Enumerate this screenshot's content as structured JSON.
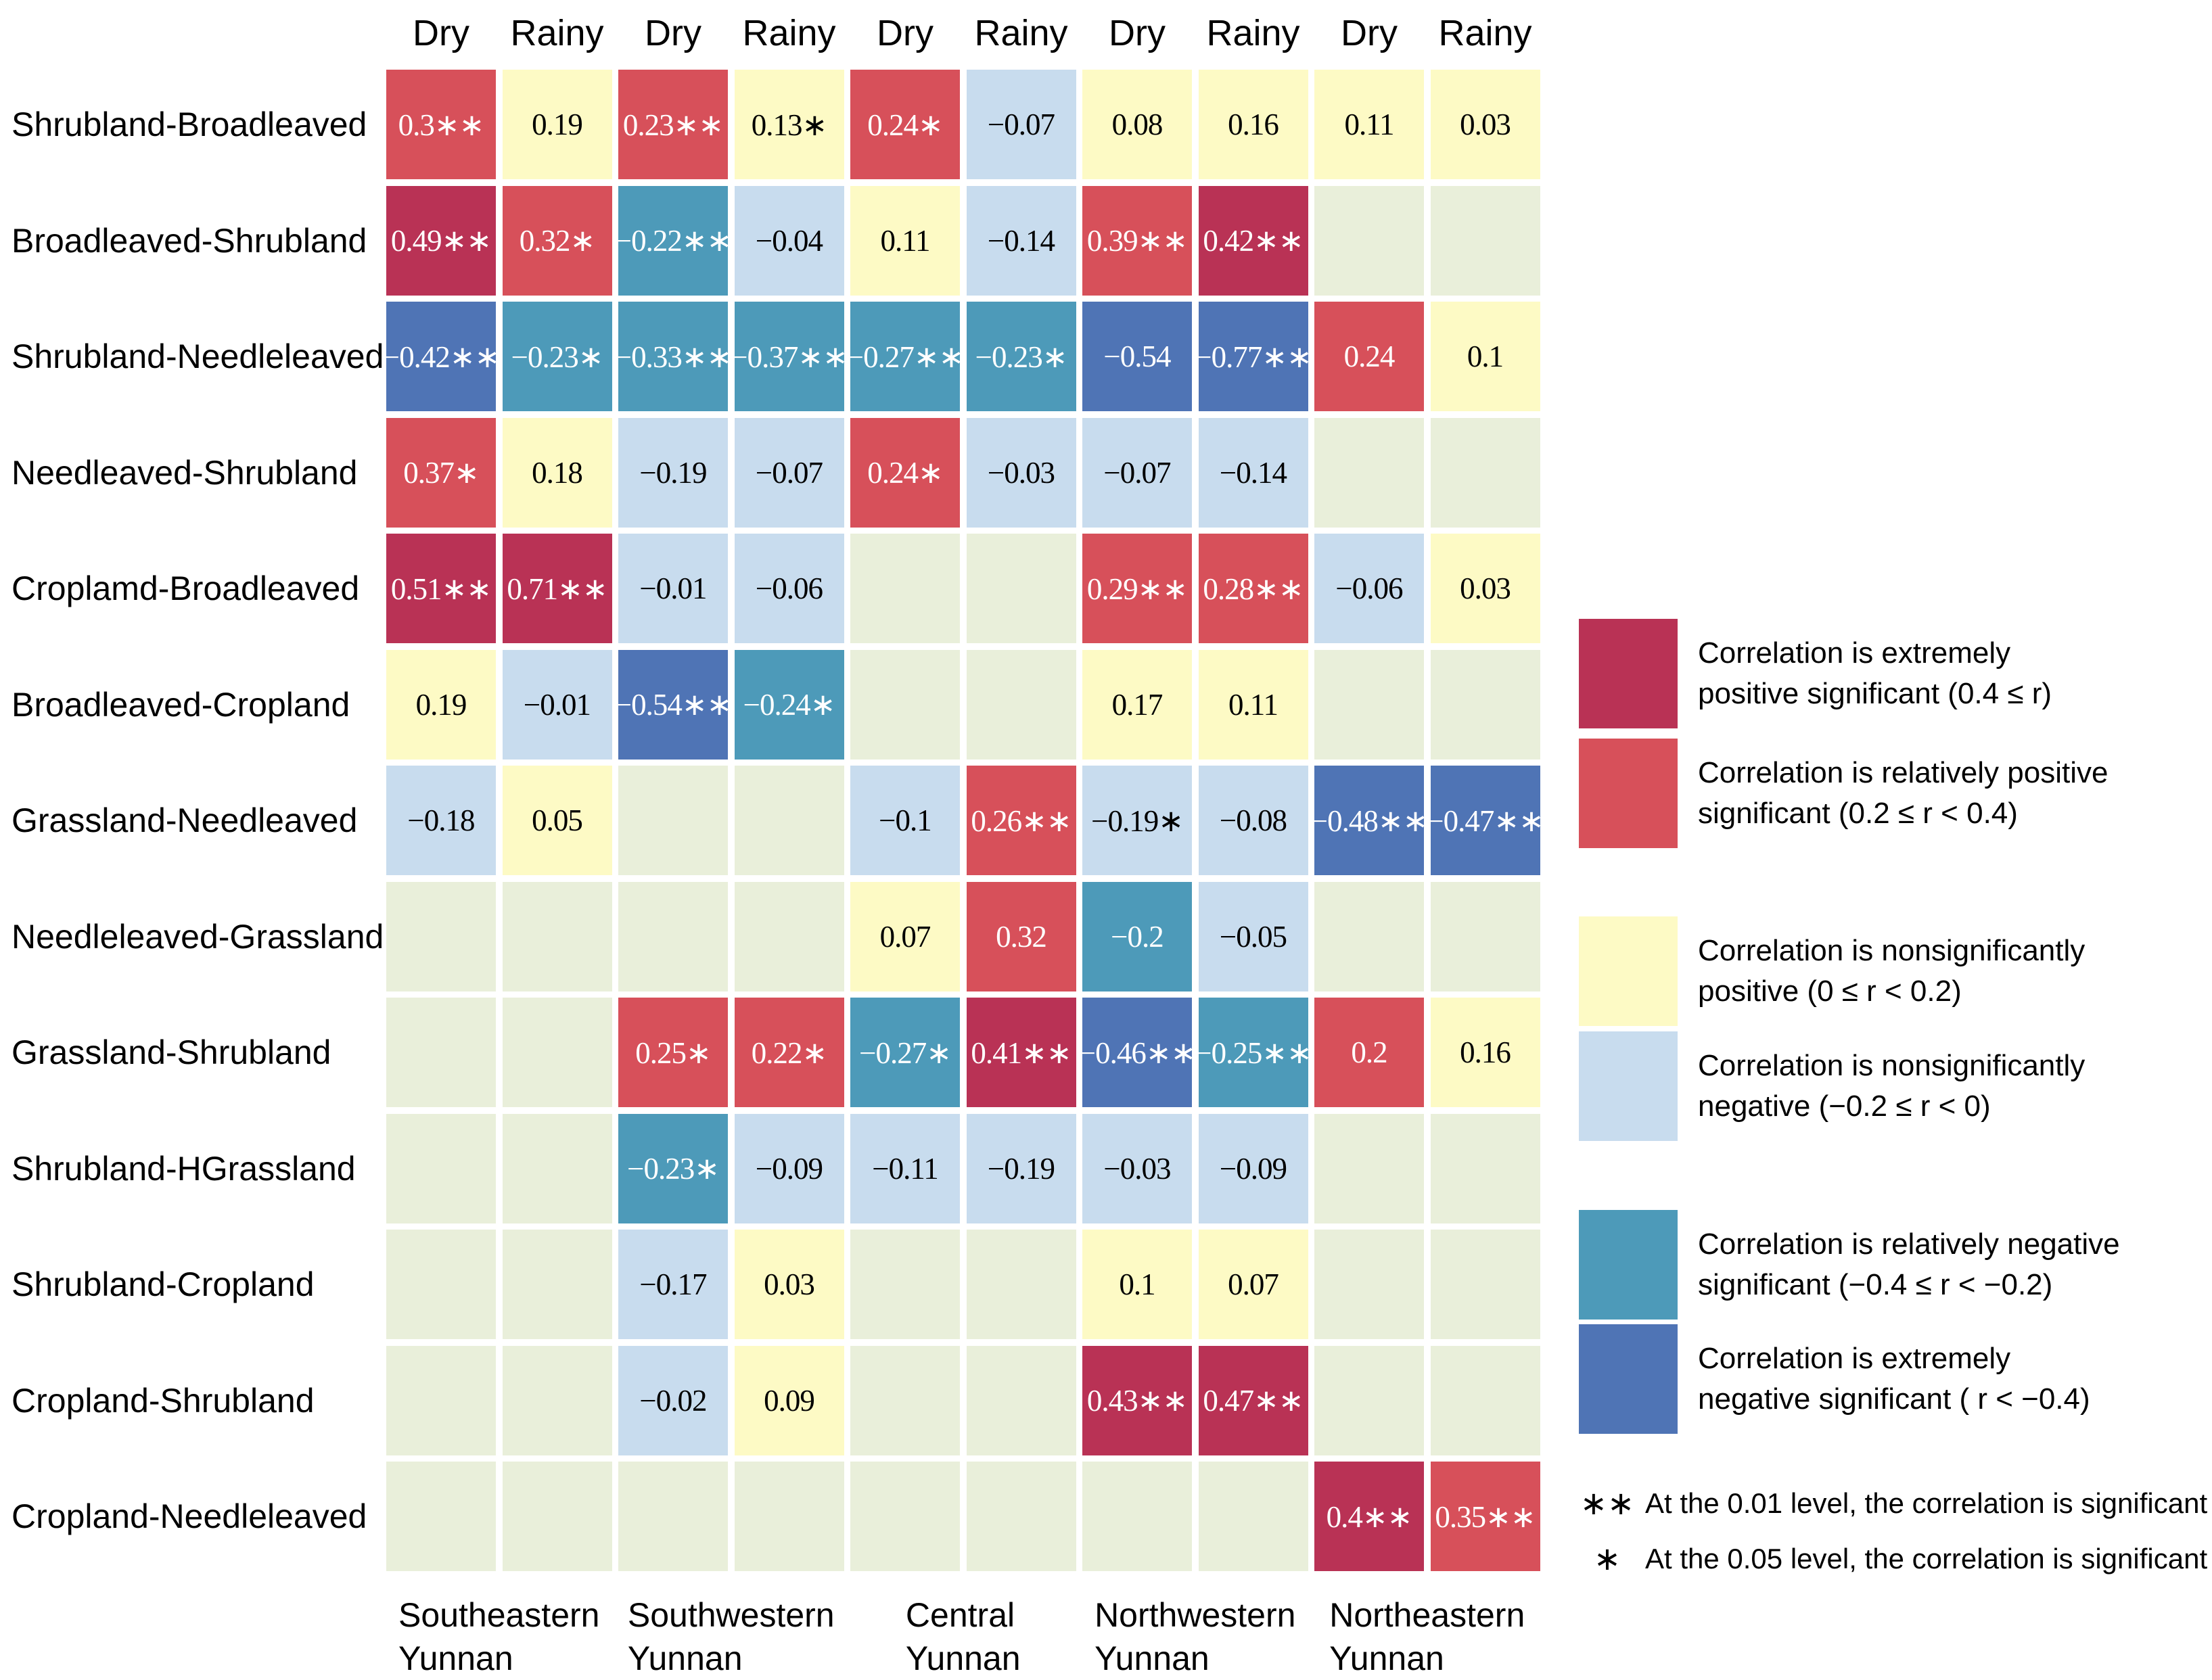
{
  "chart_data": {
    "type": "heatmap",
    "title": "",
    "star_char": "∗",
    "columns": [
      "Dry",
      "Rainy",
      "Dry",
      "Rainy",
      "Dry",
      "Rainy",
      "Dry",
      "Rainy",
      "Dry",
      "Rainy"
    ],
    "regions": [
      [
        "Southeastern",
        "Yunnan"
      ],
      [
        "Southwestern",
        "Yunnan"
      ],
      [
        "Central",
        "Yunnan"
      ],
      [
        "Northwestern",
        "Yunnan"
      ],
      [
        "Northeastern",
        "Yunnan"
      ]
    ],
    "colors": {
      "ep": "#b93255",
      "rp": "#d7505a",
      "np": "#fdfac5",
      "nn": "#c8dcee",
      "rn": "#4d9ab9",
      "en": "#4f74b5",
      "none": "#e9efda"
    },
    "light_text_categories": [
      "ep",
      "rp",
      "rn",
      "en"
    ],
    "rows": [
      {
        "label": "Shrubland-Broadleaved",
        "cells": [
          {
            "v": "0.3",
            "s": 2,
            "c": "rp"
          },
          {
            "v": "0.19",
            "s": 0,
            "c": "np"
          },
          {
            "v": "0.23",
            "s": 2,
            "c": "rp"
          },
          {
            "v": "0.13",
            "s": 1,
            "c": "np"
          },
          {
            "v": "0.24",
            "s": 1,
            "c": "rp"
          },
          {
            "v": "−0.07",
            "s": 0,
            "c": "nn"
          },
          {
            "v": "0.08",
            "s": 0,
            "c": "np"
          },
          {
            "v": "0.16",
            "s": 0,
            "c": "np"
          },
          {
            "v": "0.11",
            "s": 0,
            "c": "np"
          },
          {
            "v": "0.03",
            "s": 0,
            "c": "np"
          }
        ]
      },
      {
        "label": "Broadleaved-Shrubland",
        "cells": [
          {
            "v": "0.49",
            "s": 2,
            "c": "ep"
          },
          {
            "v": "0.32",
            "s": 1,
            "c": "rp"
          },
          {
            "v": "−0.22",
            "s": 2,
            "c": "rn"
          },
          {
            "v": "−0.04",
            "s": 0,
            "c": "nn"
          },
          {
            "v": "0.11",
            "s": 0,
            "c": "np"
          },
          {
            "v": "−0.14",
            "s": 0,
            "c": "nn"
          },
          {
            "v": "0.39",
            "s": 2,
            "c": "rp"
          },
          {
            "v": "0.42",
            "s": 2,
            "c": "ep"
          },
          null,
          null
        ]
      },
      {
        "label": "Shrubland-Needleleaved",
        "cells": [
          {
            "v": "−0.42",
            "s": 2,
            "c": "en"
          },
          {
            "v": "−0.23",
            "s": 1,
            "c": "rn"
          },
          {
            "v": "−0.33",
            "s": 2,
            "c": "rn"
          },
          {
            "v": "−0.37",
            "s": 2,
            "c": "rn"
          },
          {
            "v": "−0.27",
            "s": 2,
            "c": "rn"
          },
          {
            "v": "−0.23",
            "s": 1,
            "c": "rn"
          },
          {
            "v": "−0.54",
            "s": 0,
            "c": "en"
          },
          {
            "v": "−0.77",
            "s": 2,
            "c": "en"
          },
          {
            "v": "0.24",
            "s": 0,
            "c": "rp"
          },
          {
            "v": "0.1",
            "s": 0,
            "c": "np"
          }
        ]
      },
      {
        "label": "Needleaved-Shrubland",
        "cells": [
          {
            "v": "0.37",
            "s": 1,
            "c": "rp"
          },
          {
            "v": "0.18",
            "s": 0,
            "c": "np"
          },
          {
            "v": "−0.19",
            "s": 0,
            "c": "nn"
          },
          {
            "v": "−0.07",
            "s": 0,
            "c": "nn"
          },
          {
            "v": "0.24",
            "s": 1,
            "c": "rp"
          },
          {
            "v": "−0.03",
            "s": 0,
            "c": "nn"
          },
          {
            "v": "−0.07",
            "s": 0,
            "c": "nn"
          },
          {
            "v": "−0.14",
            "s": 0,
            "c": "nn"
          },
          null,
          null
        ]
      },
      {
        "label": "Croplamd-Broadleaved",
        "cells": [
          {
            "v": "0.51",
            "s": 2,
            "c": "ep"
          },
          {
            "v": "0.71",
            "s": 2,
            "c": "ep"
          },
          {
            "v": "−0.01",
            "s": 0,
            "c": "nn"
          },
          {
            "v": "−0.06",
            "s": 0,
            "c": "nn"
          },
          null,
          null,
          {
            "v": "0.29",
            "s": 2,
            "c": "rp"
          },
          {
            "v": "0.28",
            "s": 2,
            "c": "rp"
          },
          {
            "v": "−0.06",
            "s": 0,
            "c": "nn"
          },
          {
            "v": "0.03",
            "s": 0,
            "c": "np"
          }
        ]
      },
      {
        "label": "Broadleaved-Cropland",
        "cells": [
          {
            "v": "0.19",
            "s": 0,
            "c": "np"
          },
          {
            "v": "−0.01",
            "s": 0,
            "c": "nn"
          },
          {
            "v": "−0.54",
            "s": 2,
            "c": "en"
          },
          {
            "v": "−0.24",
            "s": 1,
            "c": "rn"
          },
          null,
          null,
          {
            "v": "0.17",
            "s": 0,
            "c": "np"
          },
          {
            "v": "0.11",
            "s": 0,
            "c": "np"
          },
          null,
          null
        ]
      },
      {
        "label": "Grassland-Needleaved",
        "cells": [
          {
            "v": "−0.18",
            "s": 0,
            "c": "nn"
          },
          {
            "v": "0.05",
            "s": 0,
            "c": "np"
          },
          null,
          null,
          {
            "v": "−0.1",
            "s": 0,
            "c": "nn"
          },
          {
            "v": "0.26",
            "s": 2,
            "c": "rp"
          },
          {
            "v": "−0.19",
            "s": 1,
            "c": "nn"
          },
          {
            "v": "−0.08",
            "s": 0,
            "c": "nn"
          },
          {
            "v": "−0.48",
            "s": 2,
            "c": "en"
          },
          {
            "v": "−0.47",
            "s": 2,
            "c": "en"
          }
        ]
      },
      {
        "label": "Needleleaved-Grassland",
        "cells": [
          null,
          null,
          null,
          null,
          {
            "v": "0.07",
            "s": 0,
            "c": "np"
          },
          {
            "v": "0.32",
            "s": 0,
            "c": "rp"
          },
          {
            "v": "−0.2",
            "s": 0,
            "c": "rn"
          },
          {
            "v": "−0.05",
            "s": 0,
            "c": "nn"
          },
          null,
          null
        ]
      },
      {
        "label": "Grassland-Shrubland",
        "cells": [
          null,
          null,
          {
            "v": "0.25",
            "s": 1,
            "c": "rp"
          },
          {
            "v": "0.22",
            "s": 1,
            "c": "rp"
          },
          {
            "v": "−0.27",
            "s": 1,
            "c": "rn"
          },
          {
            "v": "0.41",
            "s": 2,
            "c": "ep"
          },
          {
            "v": "−0.46",
            "s": 2,
            "c": "en"
          },
          {
            "v": "−0.25",
            "s": 2,
            "c": "rn"
          },
          {
            "v": "0.2",
            "s": 0,
            "c": "rp"
          },
          {
            "v": "0.16",
            "s": 0,
            "c": "np"
          }
        ]
      },
      {
        "label": "Shrubland-HGrassland",
        "cells": [
          null,
          null,
          {
            "v": "−0.23",
            "s": 1,
            "c": "rn"
          },
          {
            "v": "−0.09",
            "s": 0,
            "c": "nn"
          },
          {
            "v": "−0.11",
            "s": 0,
            "c": "nn"
          },
          {
            "v": "−0.19",
            "s": 0,
            "c": "nn"
          },
          {
            "v": "−0.03",
            "s": 0,
            "c": "nn"
          },
          {
            "v": "−0.09",
            "s": 0,
            "c": "nn"
          },
          null,
          null
        ]
      },
      {
        "label": "Shrubland-Cropland",
        "cells": [
          null,
          null,
          {
            "v": "−0.17",
            "s": 0,
            "c": "nn"
          },
          {
            "v": "0.03",
            "s": 0,
            "c": "np"
          },
          null,
          null,
          {
            "v": "0.1",
            "s": 0,
            "c": "np"
          },
          {
            "v": "0.07",
            "s": 0,
            "c": "np"
          },
          null,
          null
        ]
      },
      {
        "label": "Cropland-Shrubland",
        "cells": [
          null,
          null,
          {
            "v": "−0.02",
            "s": 0,
            "c": "nn"
          },
          {
            "v": "0.09",
            "s": 0,
            "c": "np"
          },
          null,
          null,
          {
            "v": "0.43",
            "s": 2,
            "c": "ep"
          },
          {
            "v": "0.47",
            "s": 2,
            "c": "ep"
          },
          null,
          null
        ]
      },
      {
        "label": "Cropland-Needleleaved",
        "cells": [
          null,
          null,
          null,
          null,
          null,
          null,
          null,
          null,
          {
            "v": "0.4",
            "s": 2,
            "c": "ep"
          },
          {
            "v": "0.35",
            "s": 2,
            "c": "rp"
          }
        ]
      }
    ],
    "legend": {
      "entries": [
        {
          "color": "#b93255",
          "lines": [
            "Correlation is extremely",
            "positive significant (0.4 ≤ r)"
          ]
        },
        {
          "color": "#d7505a",
          "lines": [
            "Correlation is relatively positive",
            "significant (0.2 ≤ r < 0.4)"
          ]
        },
        {
          "color": "#fdfac5",
          "lines": [
            "Correlation is nonsignificantly",
            "positive (0 ≤ r < 0.2)"
          ]
        },
        {
          "color": "#c8dcee",
          "lines": [
            "Correlation is nonsignificantly",
            "negative (−0.2 ≤ r < 0)"
          ]
        },
        {
          "color": "#4d9ab9",
          "lines": [
            "Correlation is relatively negative",
            "significant (−0.4 ≤ r < −0.2)"
          ]
        },
        {
          "color": "#4f74b5",
          "lines": [
            "Correlation is extremely",
            "negative significant ( r < −0.4)"
          ]
        }
      ],
      "entry_gaps_after": [
        15,
        101,
        8,
        102,
        7,
        75
      ],
      "notes": [
        {
          "stars": "∗∗",
          "text": "At the 0.01 level, the correlation is significant"
        },
        {
          "stars": "∗",
          "text": "At the 0.05 level, the correlation is significant"
        }
      ]
    }
  }
}
